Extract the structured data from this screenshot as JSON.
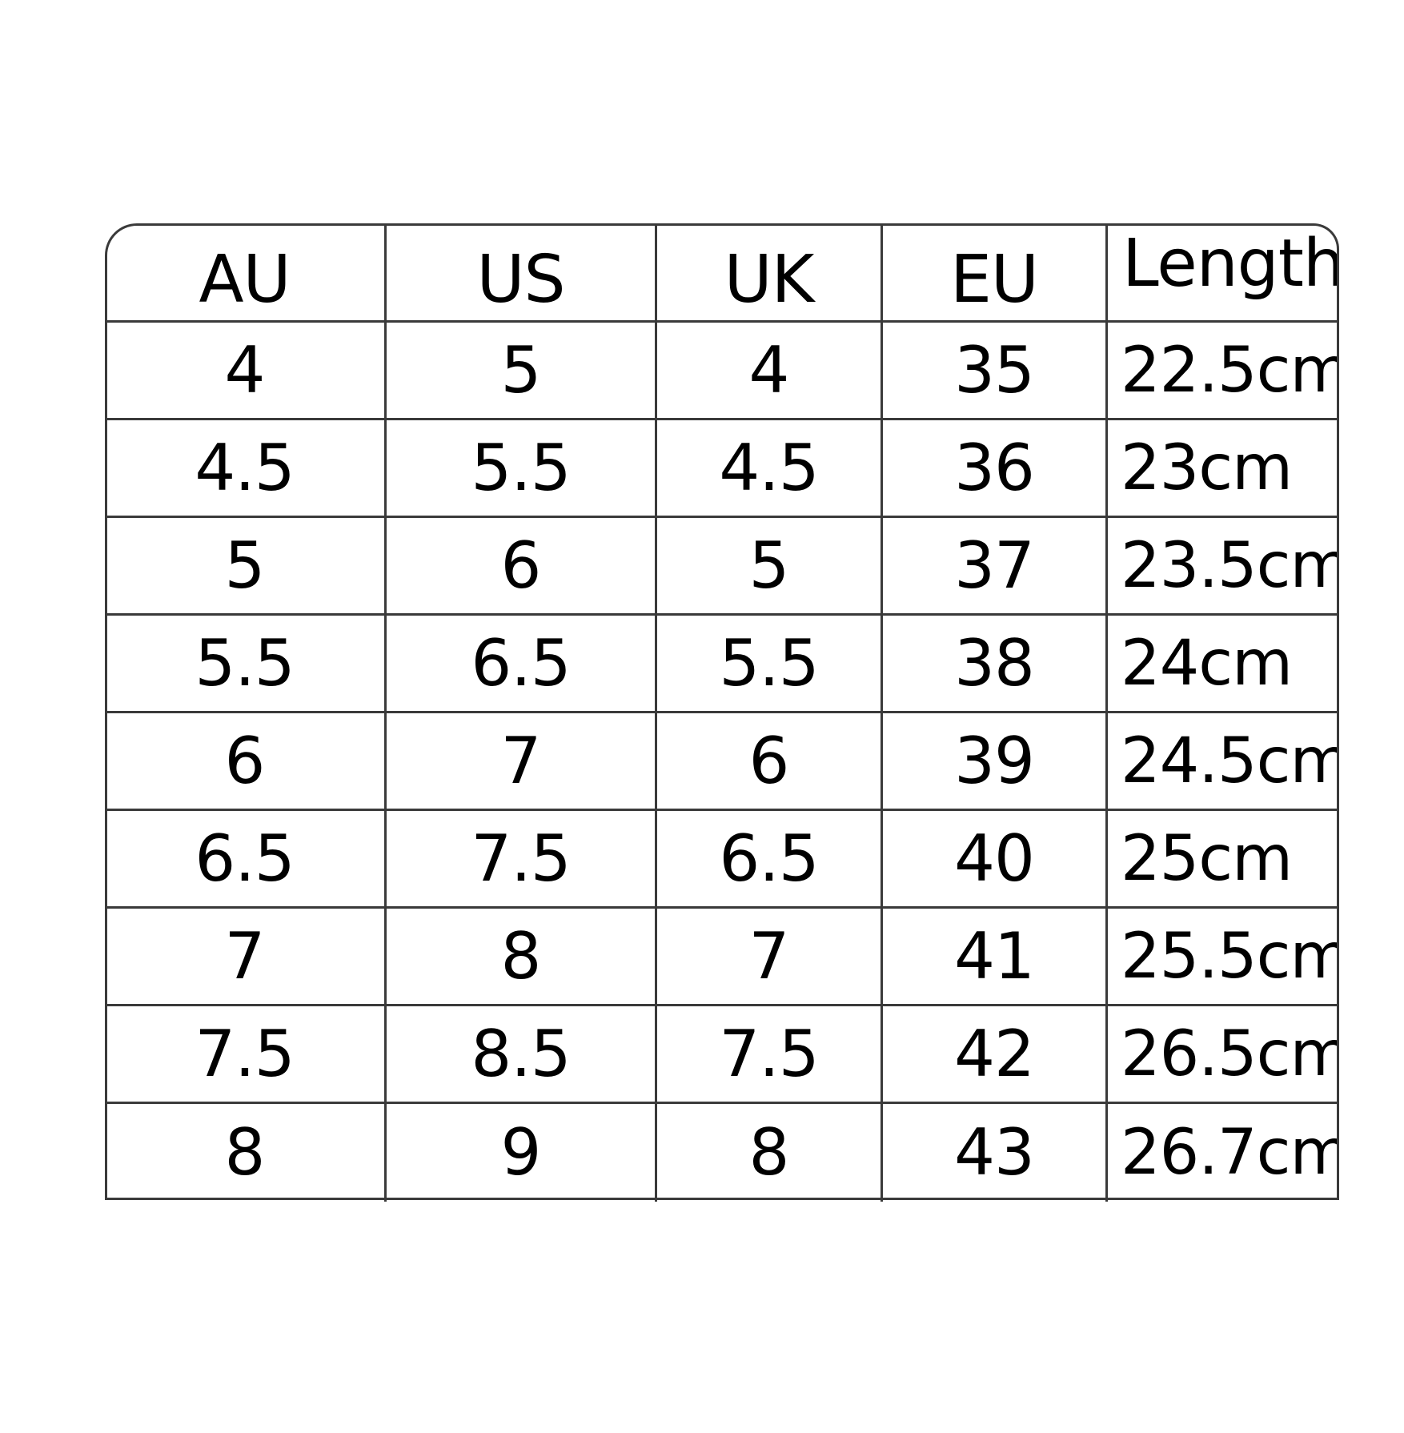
{
  "table": {
    "headers": [
      "AU",
      "US",
      "UK",
      "EU",
      "Length"
    ],
    "rows": [
      [
        "4",
        "5",
        "4",
        "35",
        "22.5cm"
      ],
      [
        "4.5",
        "5.5",
        "4.5",
        "36",
        "23cm"
      ],
      [
        "5",
        "6",
        "5",
        "37",
        "23.5cm"
      ],
      [
        "5.5",
        "6.5",
        "5.5",
        "38",
        "24cm"
      ],
      [
        "6",
        "7",
        "6",
        "39",
        "24.5cm"
      ],
      [
        "6.5",
        "7.5",
        "6.5",
        "40",
        "25cm"
      ],
      [
        "7",
        "8",
        "7",
        "41",
        "25.5cm"
      ],
      [
        "7.5",
        "8.5",
        "7.5",
        "42",
        "26.5cm"
      ],
      [
        "8",
        "9",
        "8",
        "43",
        "26.7cm"
      ]
    ]
  }
}
